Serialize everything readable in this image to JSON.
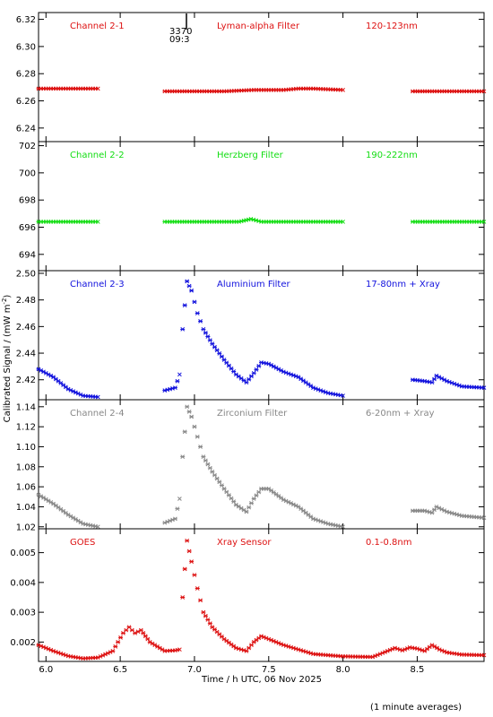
{
  "figure": {
    "ylabel": "Calibrated Signal / (mW m",
    "ylabel_sup": "-2",
    "ylabel_tail": ")",
    "xlabel": "Time / h UTC, 06 Nov 2025",
    "footnote": "(1 minute averages)",
    "marker_label_top": "3370",
    "marker_label_bottom": "09:3"
  },
  "chart_data": [
    {
      "type": "scatter",
      "title": "Channel 2-1",
      "filter": "Lyman-alpha Filter",
      "band": "120-123nm",
      "color": "#dd1111",
      "ylim": [
        6.23,
        6.325
      ],
      "yticks": [
        6.24,
        6.26,
        6.28,
        6.3,
        6.32
      ],
      "ytick_labels": [
        "6.24",
        "6.26",
        "6.28",
        "6.30",
        "6.32"
      ],
      "xlim": [
        5.95,
        8.95
      ],
      "xticks": [
        6.0,
        6.5,
        7.0,
        7.5,
        8.0,
        8.5
      ],
      "series": [
        {
          "x": [
            5.95,
            6.05,
            6.15,
            6.25,
            6.35
          ],
          "y": [
            6.269,
            6.269,
            6.269,
            6.269,
            6.269
          ]
        },
        {
          "x": [
            6.8,
            7.0,
            7.2,
            7.4,
            7.6,
            7.7,
            7.8,
            8.0
          ],
          "y": [
            6.267,
            6.267,
            6.267,
            6.268,
            6.268,
            6.269,
            6.269,
            6.268
          ]
        },
        {
          "x": [
            8.47,
            8.6,
            8.75,
            8.95
          ],
          "y": [
            6.267,
            6.267,
            6.267,
            6.267
          ]
        }
      ]
    },
    {
      "type": "scatter",
      "title": "Channel 2-2",
      "filter": "Herzberg Filter",
      "band": "190-222nm",
      "color": "#11dd11",
      "ylim": [
        692.8,
        702.3
      ],
      "yticks": [
        694,
        696,
        698,
        700,
        702
      ],
      "ytick_labels": [
        "694",
        "696",
        "698",
        "700",
        "702"
      ],
      "xlim": [
        5.95,
        8.95
      ],
      "xticks": [
        6.0,
        6.5,
        7.0,
        7.5,
        8.0,
        8.5
      ],
      "series": [
        {
          "x": [
            5.95,
            6.35
          ],
          "y": [
            696.4,
            696.4
          ]
        },
        {
          "x": [
            6.8,
            7.3,
            7.38,
            7.45,
            8.0
          ],
          "y": [
            696.4,
            696.4,
            696.6,
            696.4,
            696.4
          ]
        },
        {
          "x": [
            8.47,
            8.95
          ],
          "y": [
            696.4,
            696.4
          ]
        }
      ]
    },
    {
      "type": "scatter",
      "title": "Channel 2-3",
      "filter": "Aluminium Filter",
      "band": "17-80nm + Xray",
      "color": "#1111dd",
      "ylim": [
        2.405,
        2.502
      ],
      "yticks": [
        2.42,
        2.44,
        2.46,
        2.48,
        2.5
      ],
      "ytick_labels": [
        "2.42",
        "2.44",
        "2.46",
        "2.48",
        "2.50"
      ],
      "xlim": [
        5.95,
        8.95
      ],
      "xticks": [
        6.0,
        6.5,
        7.0,
        7.5,
        8.0,
        8.5
      ],
      "series": [
        {
          "x": [
            5.95,
            6.05,
            6.15,
            6.25,
            6.35
          ],
          "y": [
            2.428,
            2.422,
            2.413,
            2.408,
            2.407
          ]
        },
        {
          "x": [
            6.8,
            6.87,
            6.9
          ],
          "y": [
            2.412,
            2.414,
            2.424
          ]
        },
        {
          "x": [
            6.92,
            6.95,
            6.98,
            7.02,
            7.06,
            7.12,
            7.2,
            7.28,
            7.35,
            7.4,
            7.45,
            7.5,
            7.6,
            7.7,
            7.8,
            7.9,
            8.0
          ],
          "y": [
            2.458,
            2.494,
            2.487,
            2.47,
            2.458,
            2.447,
            2.435,
            2.424,
            2.418,
            2.425,
            2.433,
            2.432,
            2.426,
            2.422,
            2.414,
            2.41,
            2.408
          ]
        },
        {
          "x": [
            8.47,
            8.55,
            8.6,
            8.63,
            8.7,
            8.8,
            8.95
          ],
          "y": [
            2.42,
            2.419,
            2.418,
            2.423,
            2.419,
            2.415,
            2.414
          ]
        }
      ]
    },
    {
      "type": "scatter",
      "title": "Channel 2-4",
      "filter": "Zirconium Filter",
      "band": "6-20nm + Xray",
      "color": "#888888",
      "ylim": [
        1.018,
        1.147
      ],
      "yticks": [
        1.02,
        1.04,
        1.06,
        1.08,
        1.1,
        1.12,
        1.14
      ],
      "ytick_labels": [
        "1.02",
        "1.04",
        "1.06",
        "1.08",
        "1.10",
        "1.12",
        "1.14"
      ],
      "xlim": [
        5.95,
        8.95
      ],
      "xticks": [
        6.0,
        6.5,
        7.0,
        7.5,
        8.0,
        8.5
      ],
      "series": [
        {
          "x": [
            5.95,
            6.05,
            6.15,
            6.25,
            6.35
          ],
          "y": [
            1.052,
            1.043,
            1.032,
            1.023,
            1.02
          ]
        },
        {
          "x": [
            6.8,
            6.87,
            6.9
          ],
          "y": [
            1.024,
            1.028,
            1.048
          ]
        },
        {
          "x": [
            6.92,
            6.95,
            6.98,
            7.02,
            7.06,
            7.12,
            7.2,
            7.28,
            7.35,
            7.4,
            7.45,
            7.5,
            7.6,
            7.7,
            7.8,
            7.9,
            8.0
          ],
          "y": [
            1.09,
            1.14,
            1.13,
            1.11,
            1.09,
            1.075,
            1.058,
            1.042,
            1.035,
            1.048,
            1.058,
            1.058,
            1.047,
            1.04,
            1.028,
            1.023,
            1.02
          ]
        },
        {
          "x": [
            8.47,
            8.55,
            8.6,
            8.63,
            8.7,
            8.8,
            8.95
          ],
          "y": [
            1.036,
            1.036,
            1.034,
            1.04,
            1.035,
            1.031,
            1.029
          ]
        }
      ]
    },
    {
      "type": "scatter",
      "title": "GOES",
      "filter": "Xray Sensor",
      "band": "0.1-0.8nm",
      "color": "#dd1111",
      "ylim": [
        0.00135,
        0.0058
      ],
      "yticks": [
        0.002,
        0.003,
        0.004,
        0.005
      ],
      "ytick_labels": [
        "0.002",
        "0.003",
        "0.004",
        "0.005"
      ],
      "xlim": [
        5.95,
        8.95
      ],
      "xticks": [
        6.0,
        6.5,
        7.0,
        7.5,
        8.0,
        8.5
      ],
      "xtick_labels": [
        "6.0",
        "6.5",
        "7.0",
        "7.5",
        "8.0",
        "8.5"
      ],
      "series": [
        {
          "x": [
            5.95,
            6.05,
            6.15,
            6.25,
            6.35,
            6.45,
            6.52,
            6.56,
            6.6,
            6.64,
            6.7,
            6.8,
            6.87,
            6.9
          ],
          "y": [
            0.0019,
            0.0017,
            0.00153,
            0.00145,
            0.00148,
            0.0017,
            0.0023,
            0.0025,
            0.0023,
            0.0024,
            0.002,
            0.0017,
            0.00172,
            0.00175
          ]
        },
        {
          "x": [
            6.92,
            6.95,
            6.98,
            7.02,
            7.06,
            7.12,
            7.2,
            7.28,
            7.35,
            7.4,
            7.45,
            7.5,
            7.6,
            7.7,
            7.8,
            8.0,
            8.2,
            8.3,
            8.35,
            8.4,
            8.45,
            8.5,
            8.55,
            8.6,
            8.65,
            8.7,
            8.8,
            8.95
          ],
          "y": [
            0.0035,
            0.0054,
            0.0047,
            0.0038,
            0.003,
            0.0025,
            0.0021,
            0.0018,
            0.0017,
            0.002,
            0.0022,
            0.0021,
            0.0019,
            0.00175,
            0.0016,
            0.00152,
            0.0015,
            0.0017,
            0.0018,
            0.00172,
            0.00182,
            0.00178,
            0.0017,
            0.0019,
            0.00175,
            0.00165,
            0.00158,
            0.00156
          ]
        }
      ]
    }
  ]
}
